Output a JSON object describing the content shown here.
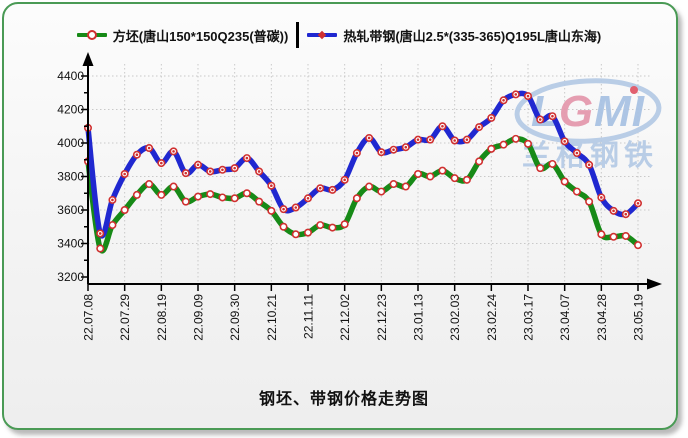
{
  "panel": {
    "border_color": "#4a9a55"
  },
  "legend": {
    "items": [
      {
        "label": "方坯(唐山150*150Q235(普碳))",
        "line_color": "#178a17",
        "marker": "circle"
      },
      {
        "label": "热轧带钢(唐山2.5*(335-365)Q195L唐山东海)",
        "line_color": "#2028d0",
        "marker": "star"
      }
    ]
  },
  "watermark": {
    "letters": [
      {
        "ch": "L",
        "color": "#a9c3e3"
      },
      {
        "ch": "G",
        "color": "#e49aae"
      },
      {
        "ch": "M",
        "color": "#a9c3e3"
      },
      {
        "ch": "I",
        "color": "#a9c3e3"
      }
    ],
    "subtext": "兰格钢铁",
    "ellipse_color": "#b6cbe6",
    "dot_color": "#e05868"
  },
  "title": "钢坯、带钢价格走势图",
  "chart_data": {
    "type": "line",
    "title": "钢坯、带钢价格走势图",
    "ylim": [
      3200,
      4400
    ],
    "y_ticks": [
      3200,
      3400,
      3600,
      3800,
      4000,
      4200,
      4400
    ],
    "x_tick_labels": [
      "22.07.08",
      "22.07.29",
      "22.08.19",
      "22.09.09",
      "22.09.30",
      "22.10.21",
      "22.11.11",
      "22.12.02",
      "22.12.23",
      "23.01.13",
      "23.02.03",
      "23.02.24",
      "23.03.17",
      "23.04.07",
      "23.04.28",
      "23.05.19"
    ],
    "points_per_tick": 3,
    "n_points": 46,
    "grid": true,
    "legend_position": "top",
    "marker_ring_color": "#d03030",
    "grid_color": "#c9c9c9",
    "series": [
      {
        "name": "方坯(唐山150*150Q235(普碳))",
        "color": "#178a17",
        "marker": "circle",
        "values": [
          3890,
          3370,
          3510,
          3600,
          3690,
          3755,
          3690,
          3740,
          3650,
          3680,
          3695,
          3675,
          3670,
          3700,
          3650,
          3595,
          3500,
          3455,
          3465,
          3510,
          3495,
          3515,
          3670,
          3740,
          3710,
          3755,
          3740,
          3815,
          3800,
          3835,
          3790,
          3780,
          3890,
          3965,
          3990,
          4025,
          3995,
          3850,
          3875,
          3770,
          3710,
          3650,
          3455,
          3440,
          3445,
          3390
        ]
      },
      {
        "name": "热轧带钢(唐山2.5*(335-365)Q195L唐山东海)",
        "color": "#2028d0",
        "marker": "circle-dot",
        "values": [
          4090,
          3460,
          3660,
          3815,
          3930,
          3970,
          3880,
          3950,
          3820,
          3870,
          3830,
          3840,
          3850,
          3910,
          3830,
          3745,
          3605,
          3615,
          3670,
          3730,
          3720,
          3780,
          3940,
          4030,
          3945,
          3960,
          3975,
          4020,
          4020,
          4100,
          4015,
          4020,
          4095,
          4150,
          4255,
          4290,
          4280,
          4140,
          4160,
          4010,
          3940,
          3870,
          3675,
          3595,
          3575,
          3640
        ]
      }
    ]
  }
}
